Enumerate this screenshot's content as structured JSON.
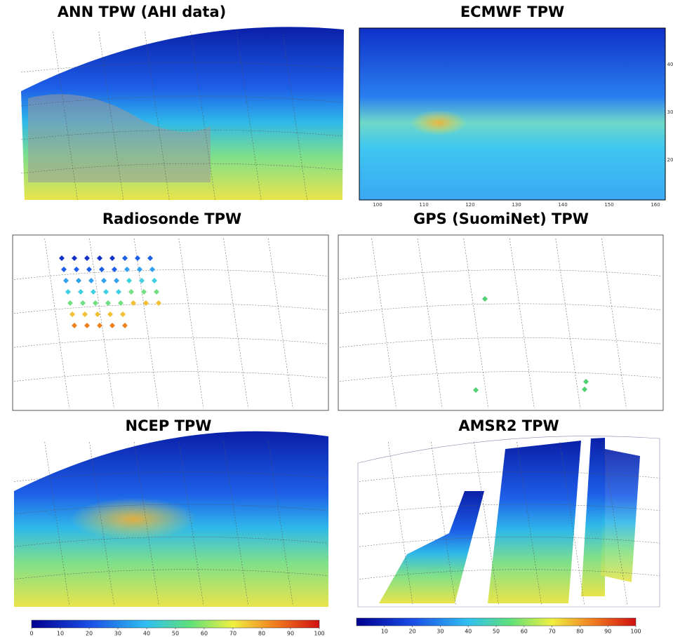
{
  "panels": [
    {
      "title": "ANN TPW (AHI data)"
    },
    {
      "title": "ECMWF TPW",
      "x_labels": [
        100,
        110,
        120,
        130,
        140,
        150,
        160
      ],
      "y_labels": [
        40,
        30,
        20
      ]
    },
    {
      "title": "Radiosonde TPW"
    },
    {
      "title": "GPS (SuomiNet) TPW"
    },
    {
      "title": "NCEP TPW"
    },
    {
      "title": "AMSR2 TPW"
    }
  ],
  "colorbars": [
    {
      "ticks": [
        0,
        10,
        20,
        30,
        40,
        50,
        60,
        70,
        80,
        90,
        100
      ]
    },
    {
      "ticks": [
        10,
        20,
        30,
        40,
        50,
        60,
        70,
        80,
        90,
        100
      ]
    }
  ]
}
